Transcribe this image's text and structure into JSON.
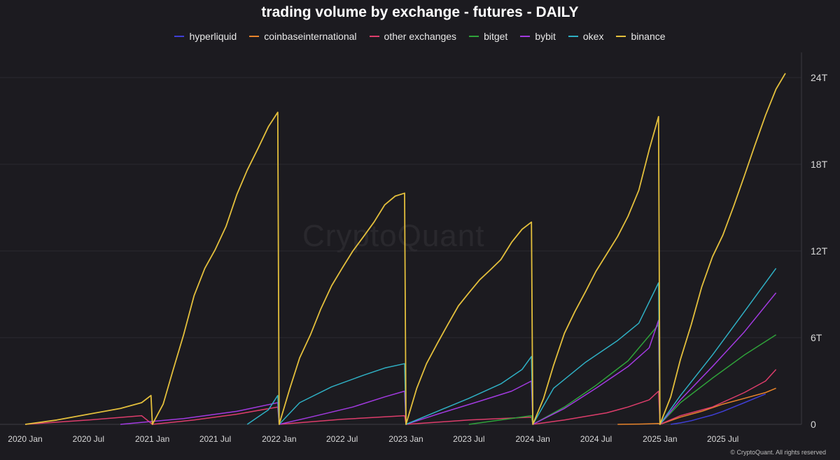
{
  "chart_data": {
    "type": "line",
    "title": "trading volume by exchange - futures - DAILY",
    "y_axis": {
      "position": "right",
      "ticks": [
        "0",
        "6T",
        "12T",
        "18T",
        "24T"
      ],
      "tick_values": [
        0,
        6,
        12,
        18,
        24
      ],
      "ylim": [
        0,
        24
      ],
      "unit_trillions": true
    },
    "x_axis": {
      "ticks": [
        "2020 Jan",
        "2020 Jul",
        "2021 Jan",
        "2021 Jul",
        "2022 Jan",
        "2022 Jul",
        "2023 Jan",
        "2023 Jul",
        "2024 Jan",
        "2024 Jul",
        "2025 Jan",
        "2025 Jul"
      ],
      "tick_values": [
        "2020-01",
        "2020-07",
        "2021-01",
        "2021-07",
        "2022-01",
        "2022-07",
        "2023-01",
        "2023-07",
        "2024-01",
        "2024-07",
        "2025-01",
        "2025-07"
      ]
    },
    "legend_position": "top-center",
    "grid": true,
    "series": [
      {
        "name": "hyperliquid",
        "color": "#3f3fd6",
        "points": [
          [
            "2025-02",
            0
          ],
          [
            "2025-03",
            0.1
          ],
          [
            "2025-04",
            0.25
          ],
          [
            "2025-05",
            0.45
          ],
          [
            "2025-06",
            0.65
          ],
          [
            "2025-07",
            0.9
          ],
          [
            "2025-08",
            1.2
          ],
          [
            "2025-09",
            1.5
          ],
          [
            "2025-10",
            1.8
          ],
          [
            "2025-11",
            2.1
          ]
        ]
      },
      {
        "name": "coinbaseinternational",
        "color": "#e8842b",
        "points": [
          [
            "2024-09",
            0
          ],
          [
            "2024-11",
            0.02
          ],
          [
            "2024-12",
            0.04
          ],
          [
            "2024-12-28",
            0.06
          ],
          [
            "2025-01",
            0
          ],
          [
            "2025-03",
            0.5
          ],
          [
            "2025-05",
            0.9
          ],
          [
            "2025-07",
            1.4
          ],
          [
            "2025-09",
            1.8
          ],
          [
            "2025-11",
            2.2
          ],
          [
            "2025-12",
            2.5
          ]
        ]
      },
      {
        "name": "other exchanges",
        "color": "#dd3d6b",
        "points": [
          [
            "2020-01",
            0
          ],
          [
            "2020-07",
            0.3
          ],
          [
            "2020-12",
            0.6
          ],
          [
            "2021-01",
            0
          ],
          [
            "2021-05",
            0.3
          ],
          [
            "2021-09",
            0.7
          ],
          [
            "2021-12-28",
            1.2
          ],
          [
            "2022-01",
            0
          ],
          [
            "2022-07",
            0.35
          ],
          [
            "2022-12-28",
            0.6
          ],
          [
            "2023-01",
            0
          ],
          [
            "2023-07",
            0.3
          ],
          [
            "2023-12-28",
            0.5
          ],
          [
            "2024-01",
            0
          ],
          [
            "2024-04",
            0.3
          ],
          [
            "2024-08",
            0.8
          ],
          [
            "2024-10",
            1.2
          ],
          [
            "2024-12",
            1.7
          ],
          [
            "2024-12-28",
            2.3
          ],
          [
            "2025-01",
            0
          ],
          [
            "2025-03",
            0.6
          ],
          [
            "2025-06",
            1.2
          ],
          [
            "2025-09",
            2.2
          ],
          [
            "2025-11",
            3.0
          ],
          [
            "2025-12",
            3.8
          ]
        ]
      },
      {
        "name": "bitget",
        "color": "#2fa23a",
        "points": [
          [
            "2023-07",
            0
          ],
          [
            "2023-12-28",
            0.6
          ],
          [
            "2024-01",
            0
          ],
          [
            "2024-04",
            1.2
          ],
          [
            "2024-07",
            2.7
          ],
          [
            "2024-10",
            4.4
          ],
          [
            "2024-12-28",
            6.9
          ],
          [
            "2025-01",
            0
          ],
          [
            "2025-03",
            1.5
          ],
          [
            "2025-06",
            3.2
          ],
          [
            "2025-09",
            4.8
          ],
          [
            "2025-12",
            6.2
          ]
        ]
      },
      {
        "name": "bybit",
        "color": "#a23ae0",
        "points": [
          [
            "2020-10",
            0
          ],
          [
            "2021-04",
            0.4
          ],
          [
            "2021-09",
            0.9
          ],
          [
            "2021-12-28",
            1.5
          ],
          [
            "2022-01",
            0
          ],
          [
            "2022-04",
            0.5
          ],
          [
            "2022-08",
            1.2
          ],
          [
            "2022-11",
            1.9
          ],
          [
            "2022-12-28",
            2.3
          ],
          [
            "2023-01",
            0
          ],
          [
            "2023-04",
            0.7
          ],
          [
            "2023-08",
            1.6
          ],
          [
            "2023-11",
            2.3
          ],
          [
            "2023-12-28",
            3.0
          ],
          [
            "2024-01",
            0
          ],
          [
            "2024-04",
            1.1
          ],
          [
            "2024-07",
            2.5
          ],
          [
            "2024-10",
            4.0
          ],
          [
            "2024-12",
            5.3
          ],
          [
            "2024-12-28",
            7.2
          ],
          [
            "2025-01",
            0
          ],
          [
            "2025-03",
            1.7
          ],
          [
            "2025-06",
            4.0
          ],
          [
            "2025-09",
            6.4
          ],
          [
            "2025-12",
            9.1
          ]
        ]
      },
      {
        "name": "okex",
        "color": "#2fb0c4",
        "points": [
          [
            "2021-10",
            0
          ],
          [
            "2021-12",
            1.0
          ],
          [
            "2021-12-28",
            2.0
          ],
          [
            "2022-01",
            0
          ],
          [
            "2022-03",
            1.5
          ],
          [
            "2022-06",
            2.6
          ],
          [
            "2022-09",
            3.4
          ],
          [
            "2022-11",
            3.9
          ],
          [
            "2022-12-28",
            4.2
          ],
          [
            "2023-01",
            0
          ],
          [
            "2023-04",
            0.9
          ],
          [
            "2023-07",
            1.8
          ],
          [
            "2023-10",
            2.8
          ],
          [
            "2023-12",
            3.8
          ],
          [
            "2023-12-28",
            4.7
          ],
          [
            "2024-01",
            0
          ],
          [
            "2024-03",
            2.5
          ],
          [
            "2024-06",
            4.3
          ],
          [
            "2024-09",
            5.8
          ],
          [
            "2024-11",
            7.0
          ],
          [
            "2024-12-28",
            9.8
          ],
          [
            "2025-01",
            0
          ],
          [
            "2025-03",
            2.0
          ],
          [
            "2025-06",
            4.8
          ],
          [
            "2025-09",
            7.8
          ],
          [
            "2025-12",
            10.8
          ]
        ]
      },
      {
        "name": "binance",
        "color": "#e3bf3c",
        "points": [
          [
            "2020-01",
            0
          ],
          [
            "2020-04",
            0.3
          ],
          [
            "2020-07",
            0.7
          ],
          [
            "2020-10",
            1.1
          ],
          [
            "2020-12",
            1.5
          ],
          [
            "2020-12-28",
            2.0
          ],
          [
            "2021-01",
            0
          ],
          [
            "2021-02",
            1.4
          ],
          [
            "2021-03",
            3.7
          ],
          [
            "2021-04",
            6.2
          ],
          [
            "2021-05",
            8.9
          ],
          [
            "2021-06",
            10.8
          ],
          [
            "2021-07",
            12.1
          ],
          [
            "2021-08",
            13.7
          ],
          [
            "2021-09",
            15.9
          ],
          [
            "2021-10",
            17.6
          ],
          [
            "2021-11",
            19.1
          ],
          [
            "2021-12",
            20.6
          ],
          [
            "2021-12-28",
            21.6
          ],
          [
            "2022-01",
            0
          ],
          [
            "2022-02",
            2.5
          ],
          [
            "2022-03",
            4.6
          ],
          [
            "2022-04",
            6.2
          ],
          [
            "2022-05",
            8.0
          ],
          [
            "2022-06",
            9.6
          ],
          [
            "2022-07",
            10.8
          ],
          [
            "2022-08",
            12.0
          ],
          [
            "2022-09",
            13.0
          ],
          [
            "2022-10",
            14.0
          ],
          [
            "2022-11",
            15.2
          ],
          [
            "2022-12",
            15.8
          ],
          [
            "2022-12-28",
            16.0
          ],
          [
            "2023-01",
            0
          ],
          [
            "2023-02",
            2.5
          ],
          [
            "2023-03",
            4.2
          ],
          [
            "2023-04",
            5.6
          ],
          [
            "2023-05",
            6.9
          ],
          [
            "2023-06",
            8.2
          ],
          [
            "2023-07",
            9.1
          ],
          [
            "2023-08",
            10.0
          ],
          [
            "2023-09",
            10.7
          ],
          [
            "2023-10",
            11.4
          ],
          [
            "2023-11",
            12.6
          ],
          [
            "2023-12",
            13.5
          ],
          [
            "2023-12-28",
            14.0
          ],
          [
            "2024-01",
            0
          ],
          [
            "2024-02",
            1.8
          ],
          [
            "2024-03",
            4.1
          ],
          [
            "2024-04",
            6.3
          ],
          [
            "2024-05",
            7.8
          ],
          [
            "2024-06",
            9.2
          ],
          [
            "2024-07",
            10.6
          ],
          [
            "2024-08",
            11.8
          ],
          [
            "2024-09",
            13.0
          ],
          [
            "2024-10",
            14.4
          ],
          [
            "2024-11",
            16.2
          ],
          [
            "2024-12",
            19.0
          ],
          [
            "2024-12-28",
            21.3
          ],
          [
            "2025-01",
            0
          ],
          [
            "2025-02",
            1.9
          ],
          [
            "2025-03",
            4.5
          ],
          [
            "2025-04",
            6.9
          ],
          [
            "2025-05",
            9.5
          ],
          [
            "2025-06",
            11.6
          ],
          [
            "2025-07",
            13.1
          ],
          [
            "2025-08",
            15.1
          ],
          [
            "2025-09",
            17.2
          ],
          [
            "2025-10",
            19.3
          ],
          [
            "2025-11",
            21.4
          ],
          [
            "2025-12",
            23.2
          ],
          [
            "2025-12-28",
            24.3
          ]
        ]
      }
    ],
    "watermark": "CryptoQuant",
    "copyright": "© CryptoQuant. All rights reserved"
  }
}
